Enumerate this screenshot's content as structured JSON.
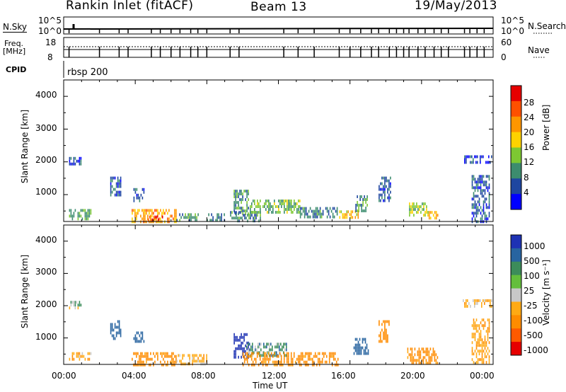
{
  "header": {
    "station": "Rankin Inlet (fitACF)",
    "beam": "Beam 13",
    "date": "19/May/2013"
  },
  "panels": {
    "nsky_label": "N.Sky",
    "nsky_ticks": [
      "10^5",
      "10^0"
    ],
    "nsearch_label": "N.Search",
    "nsearch_ticks": [
      "10^5",
      "10^0"
    ],
    "freq_label_1": "Freq.",
    "freq_label_2": "[MHz]",
    "freq_ticks": [
      "18",
      "8"
    ],
    "nave_label": "Nave",
    "nave_ticks": [
      "60",
      "0"
    ],
    "cpid_label": "CPID",
    "cpid_value": "rbsp 200"
  },
  "power_colorbar": {
    "label": "Power [dB]",
    "ticks": [
      "28",
      "24",
      "20",
      "16",
      "12",
      "8",
      "4"
    ],
    "colors": [
      "#e60000",
      "#ff5000",
      "#ff9600",
      "#ffd200",
      "#7dc832",
      "#3c8c6e",
      "#1e46a0",
      "#0000ff"
    ]
  },
  "velocity_colorbar": {
    "label": "Velocity [m s⁻¹]",
    "ticks": [
      "1000",
      "500",
      "100",
      "25",
      "-25",
      "-100",
      "-500",
      "-1000"
    ],
    "colors": [
      "#1e32b4",
      "#2864a0",
      "#3c8c5a",
      "#64be3c",
      "#c8c8c8",
      "#ffaa14",
      "#ff8c00",
      "#ff5a00",
      "#e60000"
    ]
  },
  "axes": {
    "ylabel": "Slant Range [km]",
    "yticks": [
      "4000",
      "3000",
      "2000",
      "1000"
    ],
    "xticks": [
      "00:00",
      "04:00",
      "08:00",
      "12:00",
      "16:00",
      "20:00",
      "00:00"
    ],
    "xlabel": "Time UT"
  },
  "chart_data": {
    "type": "heatmap",
    "x_unit": "hours UT",
    "y_unit": "km",
    "xlim": [
      0,
      24
    ],
    "ylim": [
      180,
      4500
    ],
    "power_features": [
      {
        "t0": 0.3,
        "t1": 1.0,
        "r0": 1950,
        "r1": 2150,
        "v": 5
      },
      {
        "t0": 0.3,
        "t1": 1.5,
        "r0": 300,
        "r1": 560,
        "v": 12
      },
      {
        "t0": 2.6,
        "t1": 3.2,
        "r0": 980,
        "r1": 1550,
        "v": 6
      },
      {
        "t0": 3.9,
        "t1": 4.5,
        "r0": 850,
        "r1": 1200,
        "v": 7
      },
      {
        "t0": 3.8,
        "t1": 6.3,
        "r0": 200,
        "r1": 560,
        "v": 22
      },
      {
        "t0": 4.7,
        "t1": 5.5,
        "r0": 200,
        "r1": 360,
        "v": 27
      },
      {
        "t0": 6.3,
        "t1": 7.5,
        "r0": 200,
        "r1": 430,
        "v": 11
      },
      {
        "t0": 8.0,
        "t1": 9.0,
        "r0": 250,
        "r1": 430,
        "v": 8
      },
      {
        "t0": 9.5,
        "t1": 10.3,
        "r0": 430,
        "r1": 1150,
        "v": 10
      },
      {
        "t0": 9.3,
        "t1": 11.0,
        "r0": 200,
        "r1": 500,
        "v": 9
      },
      {
        "t0": 10.4,
        "t1": 13.2,
        "r0": 430,
        "r1": 850,
        "v": 13
      },
      {
        "t0": 13.2,
        "t1": 15.3,
        "r0": 300,
        "r1": 620,
        "v": 9
      },
      {
        "t0": 15.4,
        "t1": 16.5,
        "r0": 300,
        "r1": 520,
        "v": 19
      },
      {
        "t0": 16.3,
        "t1": 17.0,
        "r0": 520,
        "r1": 980,
        "v": 10
      },
      {
        "t0": 17.6,
        "t1": 18.3,
        "r0": 850,
        "r1": 1550,
        "v": 7
      },
      {
        "t0": 19.3,
        "t1": 20.4,
        "r0": 360,
        "r1": 760,
        "v": 15
      },
      {
        "t0": 20.4,
        "t1": 20.9,
        "r0": 250,
        "r1": 500,
        "v": 20
      },
      {
        "t0": 22.3,
        "t1": 23.9,
        "r0": 1950,
        "r1": 2200,
        "v": 5
      },
      {
        "t0": 22.8,
        "t1": 23.8,
        "r0": 200,
        "r1": 1600,
        "v": 6
      }
    ],
    "velocity_features": [
      {
        "t0": 0.3,
        "t1": 1.0,
        "r0": 1950,
        "r1": 2150,
        "v": 0
      },
      {
        "t0": 0.3,
        "t1": 1.5,
        "r0": 300,
        "r1": 560,
        "v": -80
      },
      {
        "t0": 2.6,
        "t1": 3.2,
        "r0": 980,
        "r1": 1550,
        "v": 300
      },
      {
        "t0": 3.9,
        "t1": 4.5,
        "r0": 850,
        "r1": 1200,
        "v": 200
      },
      {
        "t0": 3.8,
        "t1": 6.3,
        "r0": 200,
        "r1": 560,
        "v": -150
      },
      {
        "t0": 6.3,
        "t1": 8.0,
        "r0": 200,
        "r1": 500,
        "v": -60
      },
      {
        "t0": 9.5,
        "t1": 10.3,
        "r0": 430,
        "r1": 1150,
        "v": 700
      },
      {
        "t0": 10.2,
        "t1": 12.5,
        "r0": 430,
        "r1": 850,
        "v": 60
      },
      {
        "t0": 10.0,
        "t1": 15.3,
        "r0": 200,
        "r1": 560,
        "v": -150
      },
      {
        "t0": 16.2,
        "t1": 17.0,
        "r0": 560,
        "r1": 1000,
        "v": 400
      },
      {
        "t0": 17.6,
        "t1": 18.2,
        "r0": 850,
        "r1": 1550,
        "v": -200
      },
      {
        "t0": 19.2,
        "t1": 20.9,
        "r0": 250,
        "r1": 700,
        "v": -150
      },
      {
        "t0": 22.3,
        "t1": 23.9,
        "r0": 1950,
        "r1": 2200,
        "v": -50
      },
      {
        "t0": 22.8,
        "t1": 23.8,
        "r0": 200,
        "r1": 1600,
        "v": -90
      }
    ]
  }
}
